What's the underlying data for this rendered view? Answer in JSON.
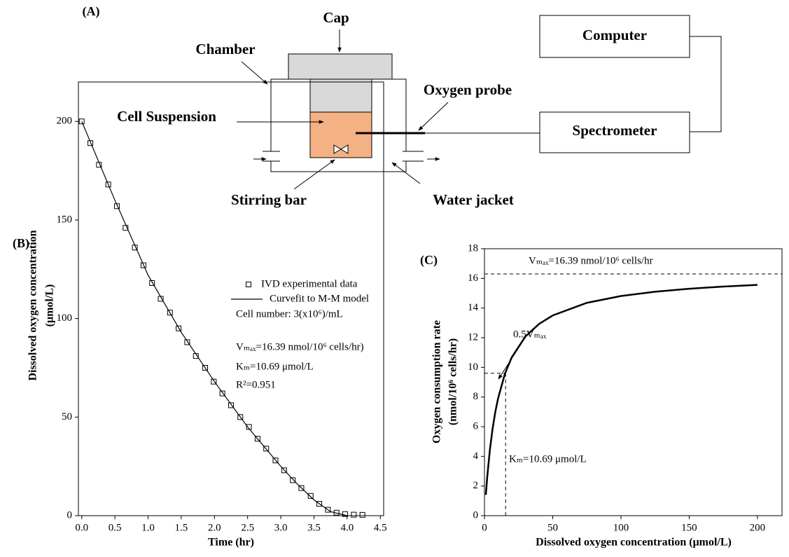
{
  "diagram": {
    "panel_label": "(A)",
    "cap": "Cap",
    "chamber": "Chamber",
    "cell_suspension": "Cell Suspension",
    "oxygen_probe": "Oxygen probe",
    "stirring_bar": "Stirring bar",
    "water_jacket": "Water jacket",
    "computer": "Computer",
    "spectrometer": "Spectrometer"
  },
  "chart_data": [
    {
      "type": "line",
      "panel_label": "(B)",
      "xlabel": "Time (hr)",
      "ylabel": [
        "Dissolved oxygen concentration",
        "(μmol/L)"
      ],
      "xlim": [
        -0.05,
        4.55
      ],
      "ylim": [
        0,
        220
      ],
      "xticks": [
        {
          "value": 0,
          "label": "0.0"
        },
        0.5,
        {
          "value": 1,
          "label": "1.0"
        },
        1.5,
        {
          "value": 2,
          "label": "2.0"
        },
        2.5,
        {
          "value": 3,
          "label": "3.0"
        },
        3.5,
        {
          "value": 4,
          "label": "4.0"
        },
        4.5
      ],
      "yticks": [
        0,
        50,
        100,
        150,
        200
      ],
      "series": [
        {
          "name": "IVD experimental data",
          "style": "markers",
          "color": "#000",
          "x": [
            0,
            0.13,
            0.26,
            0.4,
            0.53,
            0.66,
            0.8,
            0.93,
            1.06,
            1.19,
            1.33,
            1.46,
            1.59,
            1.72,
            1.86,
            1.99,
            2.12,
            2.25,
            2.39,
            2.52,
            2.65,
            2.78,
            2.92,
            3.05,
            3.18,
            3.31,
            3.45,
            3.58,
            3.71,
            3.84,
            3.97,
            4.1,
            4.23
          ],
          "values": [
            200,
            189,
            178,
            168,
            157,
            146,
            136,
            127,
            118,
            110,
            103,
            95,
            88,
            81,
            75,
            68,
            62,
            56,
            50,
            45,
            39,
            34,
            28,
            23,
            18,
            14,
            10,
            6,
            3,
            1.5,
            0.8,
            0.5,
            0.4
          ]
        },
        {
          "name": "Curvefit to M-M model",
          "style": "line",
          "color": "#000",
          "x": [
            0,
            0.5,
            1,
            1.5,
            2,
            2.5,
            3,
            3.25,
            3.5,
            3.75,
            4
          ],
          "values": [
            200,
            160,
            122,
            93,
            68,
            45,
            25,
            16,
            8,
            2,
            0
          ]
        }
      ],
      "annotations": [
        "Cell number: 3(x10⁶)/mL",
        "Vₘₐₓ=16.39 nmol/10⁶ cells/hr)",
        "Kₘ=10.69 μmol/L",
        "R²=0.951"
      ]
    },
    {
      "type": "line",
      "panel_label": "(C)",
      "xlabel": "Dissolved oxygen concentration (μmol/L)",
      "ylabel": [
        "Oxygen consumption rate",
        "(nmol/10⁶ cells/hr)"
      ],
      "xlim": [
        0,
        218
      ],
      "ylim": [
        0,
        18
      ],
      "xticks": [
        0,
        50,
        100,
        150,
        200
      ],
      "yticks": [
        0,
        2,
        4,
        6,
        8,
        10,
        12,
        14,
        16,
        18
      ],
      "series": [
        {
          "style": "thick-line",
          "color": "#000",
          "x": [
            1,
            2,
            4,
            6,
            8,
            10,
            15,
            20,
            30,
            40,
            50,
            75,
            100,
            125,
            150,
            175,
            200
          ],
          "values": [
            1.4,
            2.58,
            4.46,
            5.89,
            7.02,
            7.92,
            9.57,
            10.68,
            12.08,
            12.93,
            13.5,
            14.35,
            14.81,
            15.1,
            15.3,
            15.45,
            15.56
          ]
        }
      ],
      "reference_lines": [
        {
          "y": 16.3
        },
        {
          "x": 15.5,
          "y": 9.6
        }
      ],
      "annotations": [
        "Vₘₐₓ=16.39 nmol/10⁶ cells/hr",
        "0.5Vₘₐₓ",
        "Kₘ=10.69 μmol/L"
      ]
    }
  ]
}
